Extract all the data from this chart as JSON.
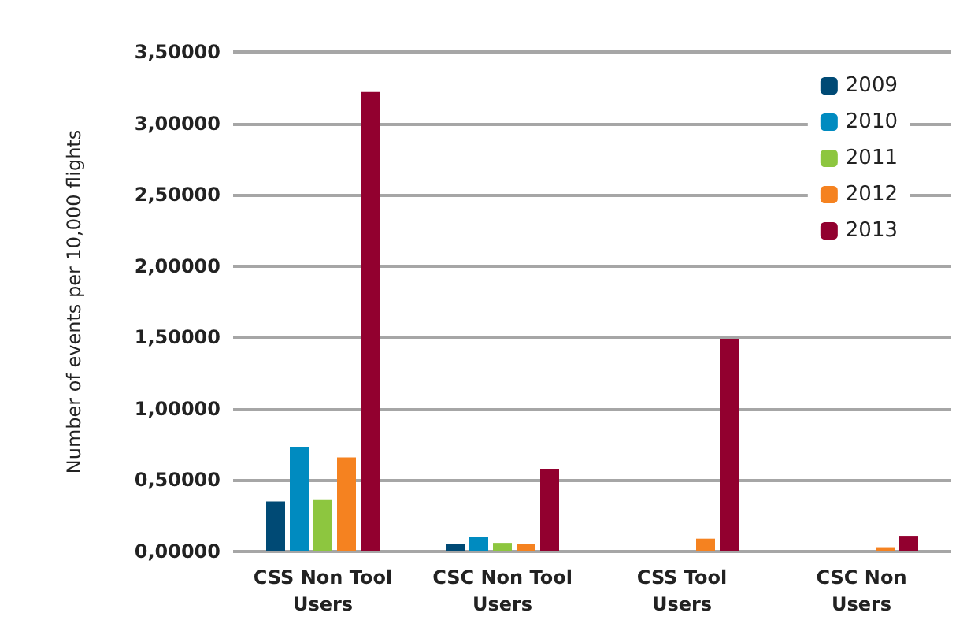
{
  "chart_data": {
    "type": "bar",
    "ylabel": "Number of events per 10,000 flights",
    "categories": [
      "CSS Non Tool\nUsers",
      "CSC Non Tool\nUsers",
      "CSS Tool\nUsers",
      "CSC Non\nUsers"
    ],
    "series": [
      {
        "name": "2009",
        "color": "#004a75",
        "values": [
          0.35,
          0.05,
          0,
          0
        ]
      },
      {
        "name": "2010",
        "color": "#008bc0",
        "values": [
          0.73,
          0.1,
          0,
          0
        ]
      },
      {
        "name": "2011",
        "color": "#8dc63f",
        "values": [
          0.36,
          0.06,
          0,
          0
        ]
      },
      {
        "name": "2012",
        "color": "#f58220",
        "values": [
          0.66,
          0.05,
          0.09,
          0.03
        ]
      },
      {
        "name": "2013",
        "color": "#92002f",
        "values": [
          3.22,
          0.58,
          1.49,
          0.11
        ]
      }
    ],
    "ylim": [
      0,
      3.5
    ],
    "yticks": [
      {
        "value": 0,
        "label": "0,00000"
      },
      {
        "value": 0.5,
        "label": "0,50000"
      },
      {
        "value": 1,
        "label": "1,00000"
      },
      {
        "value": 1.5,
        "label": "1,50000"
      },
      {
        "value": 2,
        "label": "2,00000"
      },
      {
        "value": 2.5,
        "label": "2,50000"
      },
      {
        "value": 3,
        "label": "3,00000"
      },
      {
        "value": 3.5,
        "label": "3,50000"
      }
    ],
    "grid": "y",
    "legend": "top right"
  }
}
